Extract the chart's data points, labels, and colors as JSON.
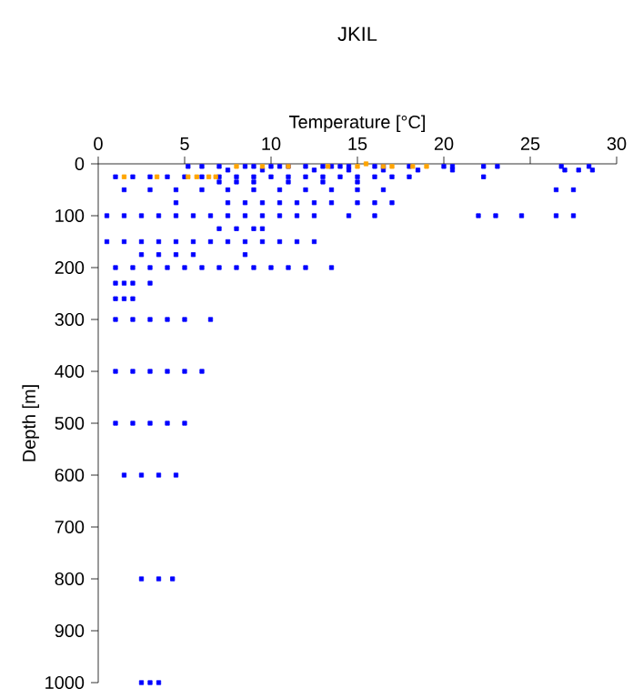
{
  "chart_data": {
    "type": "scatter",
    "title": "JKIL",
    "xlabel": "Temperature [°C]",
    "ylabel": "Depth [m]",
    "xlim": [
      0,
      30
    ],
    "ylim": [
      1000,
      0
    ],
    "xticks": [
      0,
      5,
      10,
      15,
      20,
      25,
      30
    ],
    "yticks": [
      0,
      100,
      200,
      300,
      400,
      500,
      600,
      700,
      800,
      900,
      1000
    ],
    "marker": "square",
    "series": [
      {
        "color": "#0000ff",
        "x": [
          5.2,
          6,
          7,
          8.5,
          9,
          10,
          10.5,
          11,
          12,
          13,
          13.5,
          14,
          14.5,
          16,
          16.5,
          18,
          20,
          20.5,
          22.3,
          23.1,
          26.8,
          28.4,
          7.5,
          9.5,
          12.5,
          14.5,
          16.5,
          18.5,
          20.5,
          27,
          27.8,
          28.6,
          1,
          2,
          3,
          4,
          5,
          6,
          7,
          8,
          9,
          10,
          11,
          12,
          13,
          14,
          15,
          16,
          17,
          18,
          22.3,
          7,
          8,
          9,
          11,
          13,
          15,
          1.5,
          3,
          4.5,
          6,
          7.5,
          9,
          10.5,
          12,
          13.5,
          15,
          16.5,
          26.5,
          27.5,
          4.5,
          7.5,
          8.5,
          9.5,
          10.5,
          11.5,
          12.5,
          13.5,
          15,
          16,
          17,
          0.5,
          1.5,
          2.5,
          3.5,
          4.5,
          5.5,
          6.5,
          7.5,
          8.5,
          9.5,
          10.5,
          11.5,
          12.5,
          14.5,
          16,
          22,
          23,
          24.5,
          26.5,
          27.5,
          7,
          8,
          9,
          9.5,
          0.5,
          1.5,
          2.5,
          3.5,
          4.5,
          5.5,
          6.5,
          7.5,
          8.5,
          9.5,
          10.5,
          11.5,
          12.5,
          2.5,
          3.5,
          4.5,
          5.5,
          8.5,
          1,
          2,
          3,
          4,
          5,
          6,
          7,
          8,
          9,
          10,
          11,
          12,
          13.5,
          1,
          1.5,
          2,
          3,
          1,
          1.5,
          2,
          1,
          2,
          3,
          4,
          5,
          6.5,
          1,
          2,
          3,
          4,
          5,
          6,
          1,
          2,
          3,
          4,
          5,
          1.5,
          2.5,
          3.5,
          4.5,
          2.5,
          3.5,
          4.3,
          2.5,
          3,
          3.5
        ],
        "values": [
          5,
          5,
          5,
          5,
          5,
          5,
          5,
          5,
          5,
          5,
          5,
          5,
          5,
          5,
          5,
          5,
          5,
          5,
          5,
          5,
          5,
          5,
          12,
          12,
          12,
          12,
          12,
          12,
          12,
          12,
          12,
          12,
          25,
          25,
          25,
          25,
          25,
          25,
          25,
          25,
          25,
          25,
          25,
          25,
          25,
          25,
          25,
          25,
          25,
          25,
          25,
          35,
          35,
          35,
          35,
          35,
          35,
          50,
          50,
          50,
          50,
          50,
          50,
          50,
          50,
          50,
          50,
          50,
          50,
          50,
          75,
          75,
          75,
          75,
          75,
          75,
          75,
          75,
          75,
          75,
          75,
          100,
          100,
          100,
          100,
          100,
          100,
          100,
          100,
          100,
          100,
          100,
          100,
          100,
          100,
          100,
          100,
          100,
          100,
          100,
          100,
          125,
          125,
          125,
          125,
          150,
          150,
          150,
          150,
          150,
          150,
          150,
          150,
          150,
          150,
          150,
          150,
          150,
          175,
          175,
          175,
          175,
          175,
          200,
          200,
          200,
          200,
          200,
          200,
          200,
          200,
          200,
          200,
          200,
          200,
          200,
          230,
          230,
          230,
          230,
          260,
          260,
          260,
          300,
          300,
          300,
          300,
          300,
          300,
          400,
          400,
          400,
          400,
          400,
          400,
          500,
          500,
          500,
          500,
          500,
          600,
          600,
          600,
          600,
          800,
          800,
          800,
          1000,
          1000,
          1000
        ]
      },
      {
        "color": "#ffa500",
        "x": [
          8,
          9.5,
          11,
          13.3,
          15,
          15.5,
          16.5,
          17,
          18.2,
          19,
          1.5,
          3.4,
          5.2,
          5.7,
          6.4,
          6.8
        ],
        "values": [
          5,
          5,
          5,
          5,
          5,
          0,
          5,
          5,
          5,
          5,
          25,
          25,
          25,
          25,
          25,
          25
        ]
      }
    ]
  }
}
